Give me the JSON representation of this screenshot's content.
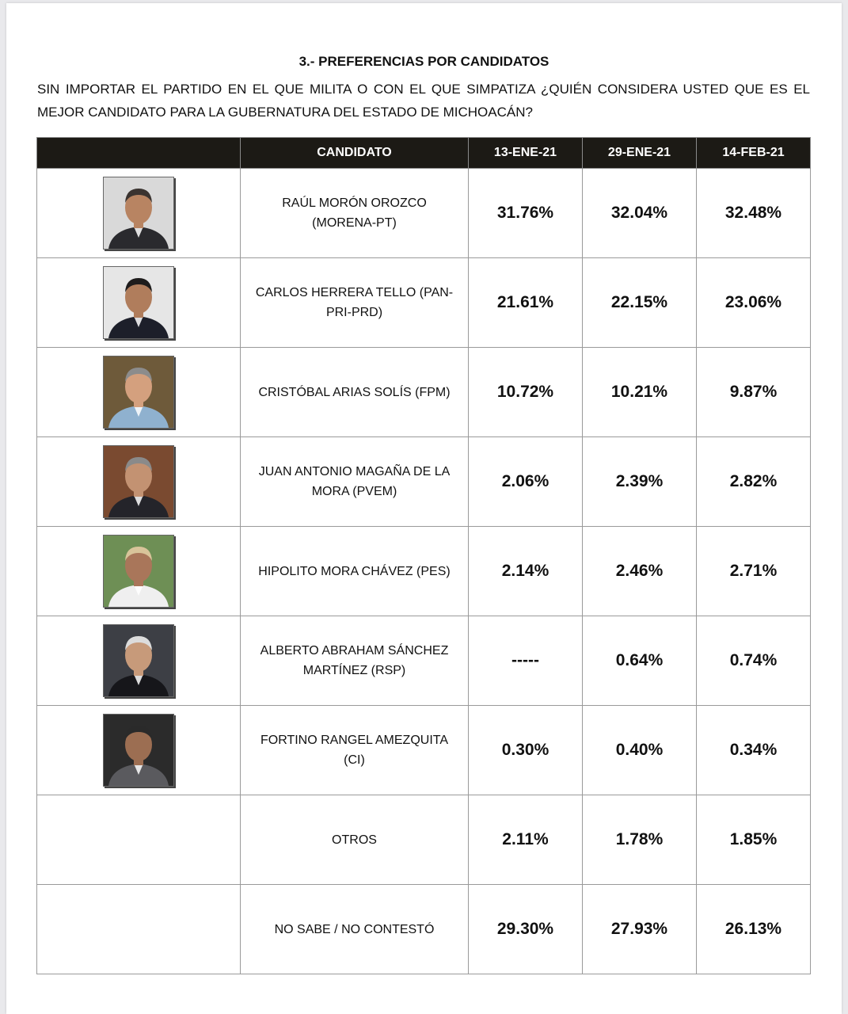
{
  "heading": "3.- PREFERENCIAS POR CANDIDATOS",
  "question": "SIN IMPORTAR EL PARTIDO EN EL QUE MILITA O CON EL QUE SIMPATIZA ¿QUIÉN CONSIDERA USTED QUE ES EL MEJOR CANDIDATO PARA LA GUBERNATURA DEL ESTADO DE MICHOACÁN?",
  "table": {
    "headers": [
      "",
      "CANDIDATO",
      "13-ENE-21",
      "29-ENE-21",
      "14-FEB-21"
    ],
    "rows": [
      {
        "photo": "candidate-photo-moron",
        "bg": "#d9d9d9",
        "skin": "#b88462",
        "hair": "#3a3330",
        "shirt": "#2a2a2e",
        "line1": "RAÚL MORÓN OROZCO",
        "line2": "(MORENA-PT)",
        "values": [
          "31.76%",
          "32.04%",
          "32.48%"
        ]
      },
      {
        "photo": "candidate-photo-herrera",
        "bg": "#e6e6e6",
        "skin": "#b07d5c",
        "hair": "#1e1c1c",
        "shirt": "#1d1f2a",
        "line1": "CARLOS HERRERA TELLO (PAN-",
        "line2": "PRI-PRD)",
        "values": [
          "21.61%",
          "22.15%",
          "23.06%"
        ]
      },
      {
        "photo": "candidate-photo-arias",
        "bg": "#6e5a3a",
        "skin": "#d4a07e",
        "hair": "#8c8c8c",
        "shirt": "#8fb1cf",
        "line1": "CRISTÓBAL ARIAS SOLÍS (FPM)",
        "line2": "",
        "values": [
          "10.72%",
          "10.21%",
          "9.87%"
        ]
      },
      {
        "photo": "candidate-photo-magana",
        "bg": "#7a4a30",
        "skin": "#c39272",
        "hair": "#8a8a8a",
        "shirt": "#24242a",
        "line1": "JUAN ANTONIO MAGAÑA DE LA",
        "line2": "MORA (PVEM)",
        "values": [
          "2.06%",
          "2.39%",
          "2.82%"
        ]
      },
      {
        "photo": "candidate-photo-mora",
        "bg": "#6e8f55",
        "skin": "#a9765a",
        "hair": "#d8c49a",
        "shirt": "#efefef",
        "line1": "HIPOLITO MORA CHÁVEZ (PES)",
        "line2": "",
        "values": [
          "2.14%",
          "2.46%",
          "2.71%"
        ]
      },
      {
        "photo": "candidate-photo-sanchez",
        "bg": "#3d3f45",
        "skin": "#c79a7a",
        "hair": "#dcdcdc",
        "shirt": "#16161a",
        "line1": "ALBERTO ABRAHAM SÁNCHEZ",
        "line2": "MARTÍNEZ (RSP)",
        "values": [
          "-----",
          "0.64%",
          "0.74%"
        ]
      },
      {
        "photo": "candidate-photo-rangel",
        "bg": "#2b2b2b",
        "skin": "#9c6e52",
        "hair": "#2a2a2a",
        "shirt": "#5a5a5e",
        "line1": "FORTINO RANGEL AMEZQUITA",
        "line2": "(CI)",
        "values": [
          "0.30%",
          "0.40%",
          "0.34%"
        ]
      },
      {
        "photo": "",
        "line1": "OTROS",
        "line2": "",
        "values": [
          "2.11%",
          "1.78%",
          "1.85%"
        ]
      },
      {
        "photo": "",
        "line1": "NO SABE / NO CONTESTÓ",
        "line2": "",
        "values": [
          "29.30%",
          "27.93%",
          "26.13%"
        ]
      }
    ]
  }
}
